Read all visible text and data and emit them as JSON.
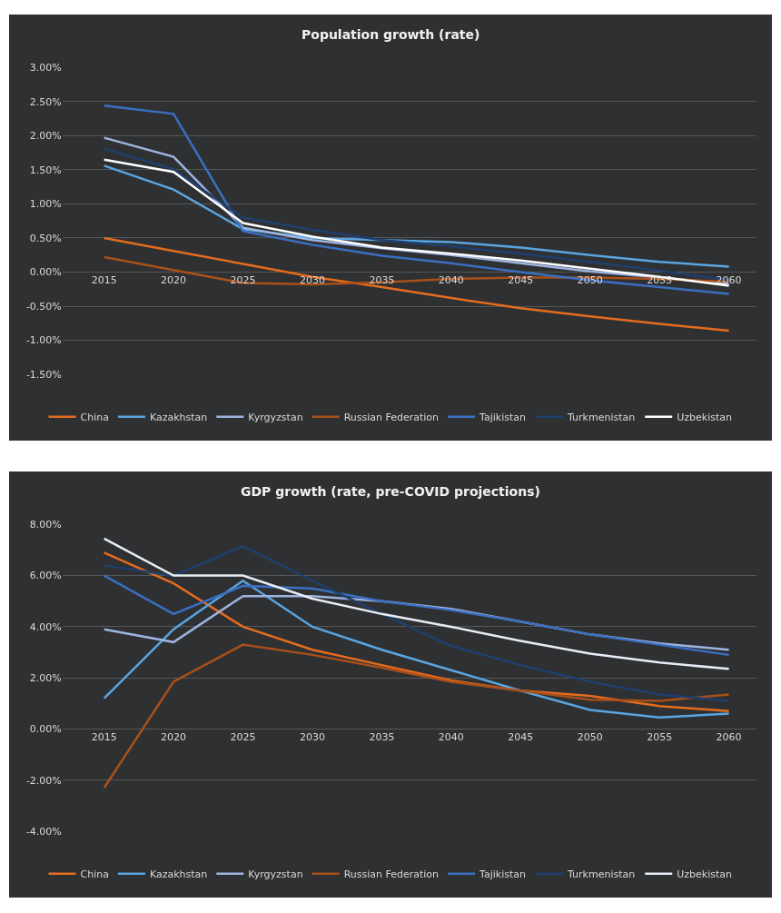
{
  "chart_data": [
    {
      "type": "line",
      "title": "Population growth (rate)",
      "categories": [
        "2015",
        "2020",
        "2025",
        "2030",
        "2035",
        "2040",
        "2045",
        "2050",
        "2055",
        "2060"
      ],
      "ylim": [
        -1.5,
        3.0
      ],
      "yticks": [
        {
          "value": 3.0,
          "label": "3.00%"
        },
        {
          "value": 2.5,
          "label": "2.50%"
        },
        {
          "value": 2.0,
          "label": "2.00%"
        },
        {
          "value": 1.5,
          "label": "1.50%"
        },
        {
          "value": 1.0,
          "label": "1.00%"
        },
        {
          "value": 0.5,
          "label": "0.50%"
        },
        {
          "value": 0.0,
          "label": "0.00%"
        },
        {
          "value": -0.5,
          "label": "-0.50%"
        },
        {
          "value": -1.0,
          "label": "-1.00%"
        },
        {
          "value": -1.5,
          "label": "-1.50%"
        }
      ],
      "grid": "y",
      "legend": "bottom",
      "marker": "none",
      "line_style": "solid",
      "series": [
        {
          "name": "China",
          "color": "#e46c1e",
          "values": [
            0.5,
            0.31,
            0.12,
            -0.07,
            -0.22,
            -0.38,
            -0.53,
            -0.65,
            -0.76,
            -0.86
          ]
        },
        {
          "name": "Kazakhstan",
          "color": "#5aa5e0",
          "values": [
            1.56,
            1.21,
            0.63,
            0.5,
            0.47,
            0.44,
            0.36,
            0.25,
            0.15,
            0.08
          ]
        },
        {
          "name": "Kyrgyzstan",
          "color": "#9db3e0",
          "values": [
            1.97,
            1.69,
            0.65,
            0.47,
            0.35,
            0.25,
            0.13,
            0.01,
            -0.08,
            -0.17
          ]
        },
        {
          "name": "Russian Federation",
          "color": "#a8501a",
          "values": [
            0.22,
            0.03,
            -0.16,
            -0.18,
            -0.15,
            -0.1,
            -0.08,
            -0.08,
            -0.1,
            -0.14
          ]
        },
        {
          "name": "Tajikistan",
          "color": "#3a6fc0",
          "values": [
            2.44,
            2.32,
            0.6,
            0.4,
            0.24,
            0.13,
            0.0,
            -0.12,
            -0.22,
            -0.32
          ]
        },
        {
          "name": "Turkmenistan",
          "color": "#1f3f6e",
          "values": [
            1.81,
            1.51,
            0.8,
            0.62,
            0.47,
            0.38,
            0.27,
            0.15,
            0.02,
            -0.12
          ]
        },
        {
          "name": "Uzbekistan",
          "color": "#ffffff",
          "values": [
            1.65,
            1.47,
            0.72,
            0.52,
            0.36,
            0.27,
            0.17,
            0.05,
            -0.07,
            -0.2
          ]
        }
      ]
    },
    {
      "type": "line",
      "title": "GDP growth (rate, pre-COVID projections)",
      "categories": [
        "2015",
        "2020",
        "2025",
        "2030",
        "2035",
        "2040",
        "2045",
        "2050",
        "2055",
        "2060"
      ],
      "ylim": [
        -4.0,
        8.0
      ],
      "yticks": [
        {
          "value": 8.0,
          "label": "8.00%"
        },
        {
          "value": 6.0,
          "label": "6.00%"
        },
        {
          "value": 4.0,
          "label": "4.00%"
        },
        {
          "value": 2.0,
          "label": "2.00%"
        },
        {
          "value": 0.0,
          "label": "0.00%"
        },
        {
          "value": -2.0,
          "label": "-2.00%"
        },
        {
          "value": -4.0,
          "label": "-4.00%"
        }
      ],
      "grid": "y",
      "legend": "bottom",
      "marker": "none",
      "line_style": "solid",
      "series": [
        {
          "name": "China",
          "color": "#e46c1e",
          "values": [
            6.9,
            5.7,
            4.0,
            3.1,
            2.5,
            1.9,
            1.5,
            1.3,
            0.9,
            0.7
          ]
        },
        {
          "name": "Kazakhstan",
          "color": "#5aa5e0",
          "values": [
            1.2,
            3.9,
            5.8,
            4.0,
            3.1,
            2.3,
            1.5,
            0.75,
            0.45,
            0.6
          ]
        },
        {
          "name": "Kyrgyzstan",
          "color": "#9db3e0",
          "values": [
            3.9,
            3.4,
            5.2,
            5.2,
            5.0,
            4.7,
            4.2,
            3.7,
            3.35,
            3.1
          ]
        },
        {
          "name": "Russian Federation",
          "color": "#a8501a",
          "values": [
            -2.3,
            1.85,
            3.3,
            2.9,
            2.4,
            1.85,
            1.5,
            1.15,
            1.1,
            1.35
          ]
        },
        {
          "name": "Tajikistan",
          "color": "#3a6fc0",
          "values": [
            6.0,
            4.5,
            5.6,
            5.5,
            5.0,
            4.65,
            4.2,
            3.7,
            3.3,
            2.9
          ]
        },
        {
          "name": "Turkmenistan",
          "color": "#1f3f6e",
          "values": [
            6.4,
            6.0,
            7.15,
            5.8,
            4.5,
            3.25,
            2.5,
            1.85,
            1.35,
            1.1
          ]
        },
        {
          "name": "Uzbekistan",
          "color": "#e8ecf5",
          "values": [
            7.45,
            6.0,
            6.0,
            5.1,
            4.5,
            4.0,
            3.45,
            2.95,
            2.6,
            2.35
          ]
        }
      ]
    }
  ]
}
